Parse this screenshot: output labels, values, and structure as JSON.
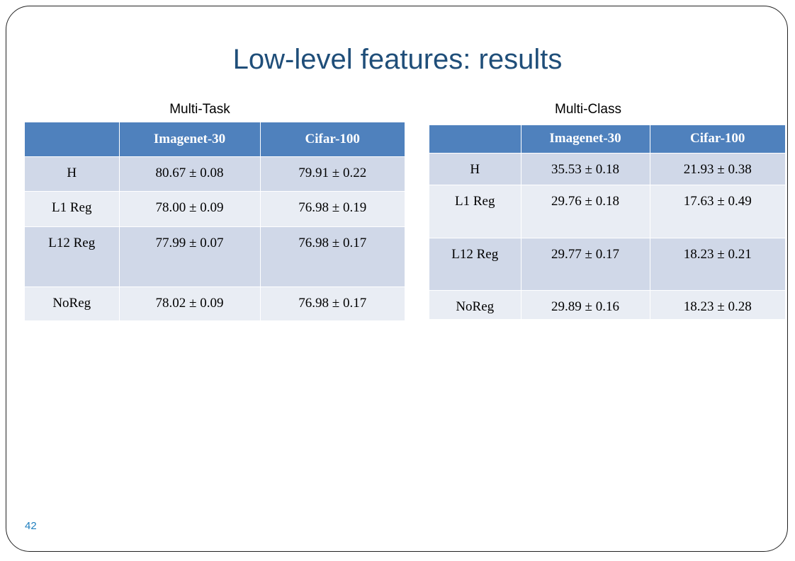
{
  "title": "Low-level features: results",
  "tables": [
    {
      "caption": "Multi-Task",
      "header": [
        "Imagenet-30",
        "Cifar-100"
      ],
      "rows": [
        [
          "H",
          "80.67 ± 0.08",
          "79.91 ± 0.22"
        ],
        [
          "L1 Reg",
          "78.00 ± 0.09",
          "76.98 ± 0.19"
        ],
        [
          "L12 Reg",
          "77.99 ± 0.07",
          "76.98 ± 0.17"
        ],
        [
          "NoReg",
          "78.02 ± 0.09",
          "76.98 ± 0.17"
        ]
      ]
    },
    {
      "caption": "Multi-Class",
      "header": [
        "Imagenet-30",
        "Cifar-100"
      ],
      "rows": [
        [
          "H",
          "35.53 ± 0.18",
          "21.93 ± 0.38"
        ],
        [
          "L1 Reg",
          "29.76 ± 0.18",
          "17.63 ± 0.49"
        ],
        [
          "L12 Reg",
          "29.77 ± 0.17",
          "18.23 ± 0.21"
        ],
        [
          "NoReg",
          "29.89 ± 0.16",
          "18.23 ± 0.28"
        ]
      ]
    }
  ],
  "page_number": "42"
}
